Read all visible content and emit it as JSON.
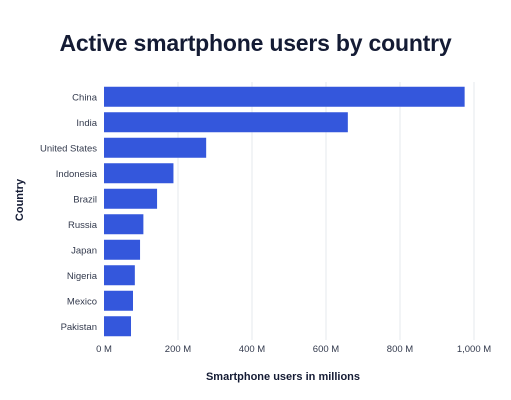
{
  "chart_data": {
    "type": "bar",
    "orientation": "horizontal",
    "title": "Active smartphone users by country",
    "xlabel": "Smartphone users in millions",
    "ylabel": "Country",
    "categories": [
      "China",
      "India",
      "United States",
      "Indonesia",
      "Brazil",
      "Russia",
      "Japan",
      "Nigeria",
      "Mexico",
      "Pakistan"
    ],
    "values": [
      974.69,
      659,
      276.14,
      187.7,
      143.43,
      106.44,
      97.44,
      83.34,
      78.37,
      72.99
    ],
    "xlim": [
      0,
      1000
    ],
    "xticks": [
      0,
      200,
      400,
      600,
      800,
      1000
    ],
    "xtick_labels": [
      "0 M",
      "200 M",
      "400 M",
      "600 M",
      "800 M",
      "1,000 M"
    ],
    "grid": "vertical",
    "bar_color": "#3457dc",
    "grid_color": "#e6e8ee",
    "text_color": "#141b34"
  }
}
